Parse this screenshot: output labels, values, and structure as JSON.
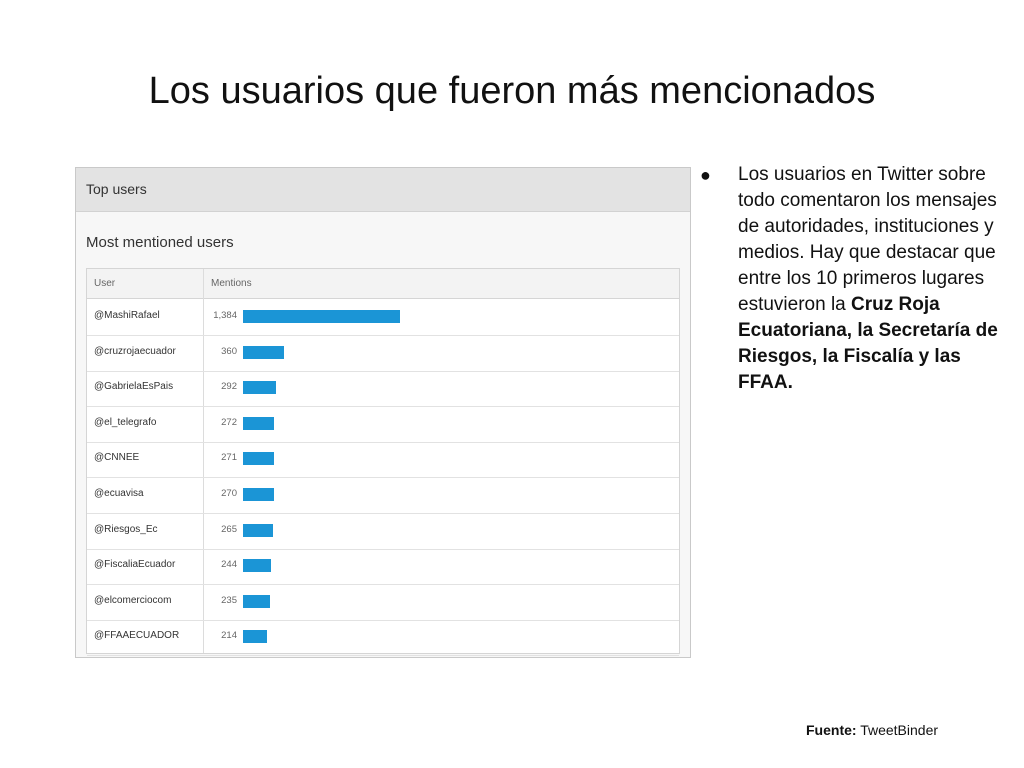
{
  "slide": {
    "title": "Los usuarios que fueron más mencionados"
  },
  "panel": {
    "header": "Top users",
    "section_title": "Most mentioned users",
    "columns": {
      "user": "User",
      "mentions": "Mentions"
    }
  },
  "chart_data": {
    "type": "bar",
    "title": "Most mentioned users",
    "xlabel": "User",
    "ylabel": "Mentions",
    "categories": [
      "@MashiRafael",
      "@cruzrojaecuador",
      "@GabrielaEsPais",
      "@el_telegrafo",
      "@CNNEE",
      "@ecuavisa",
      "@Riesgos_Ec",
      "@FiscaliaEcuador",
      "@elcomerciocom",
      "@FFAAECUADOR"
    ],
    "values": [
      1384,
      360,
      292,
      272,
      271,
      270,
      265,
      244,
      235,
      214
    ],
    "value_labels": [
      "1,384",
      "360",
      "292",
      "272",
      "271",
      "270",
      "265",
      "244",
      "235",
      "214"
    ],
    "ylim": [
      0,
      1384
    ],
    "bar_color": "#1b95d6",
    "orientation": "horizontal",
    "grid": false
  },
  "bullet": {
    "dot": "●",
    "text_plain": "Los usuarios en Twitter sobre todo comentaron los mensajes de autoridades, instituciones y medios. Hay que destacar que entre los 10 primeros lugares estuvieron la ",
    "text_bold": "Cruz Roja Ecuatoriana, la Secretaría de Riesgos, la Fiscalía y las FFAA."
  },
  "source": {
    "label": "Fuente:",
    "value": "TweetBinder"
  }
}
